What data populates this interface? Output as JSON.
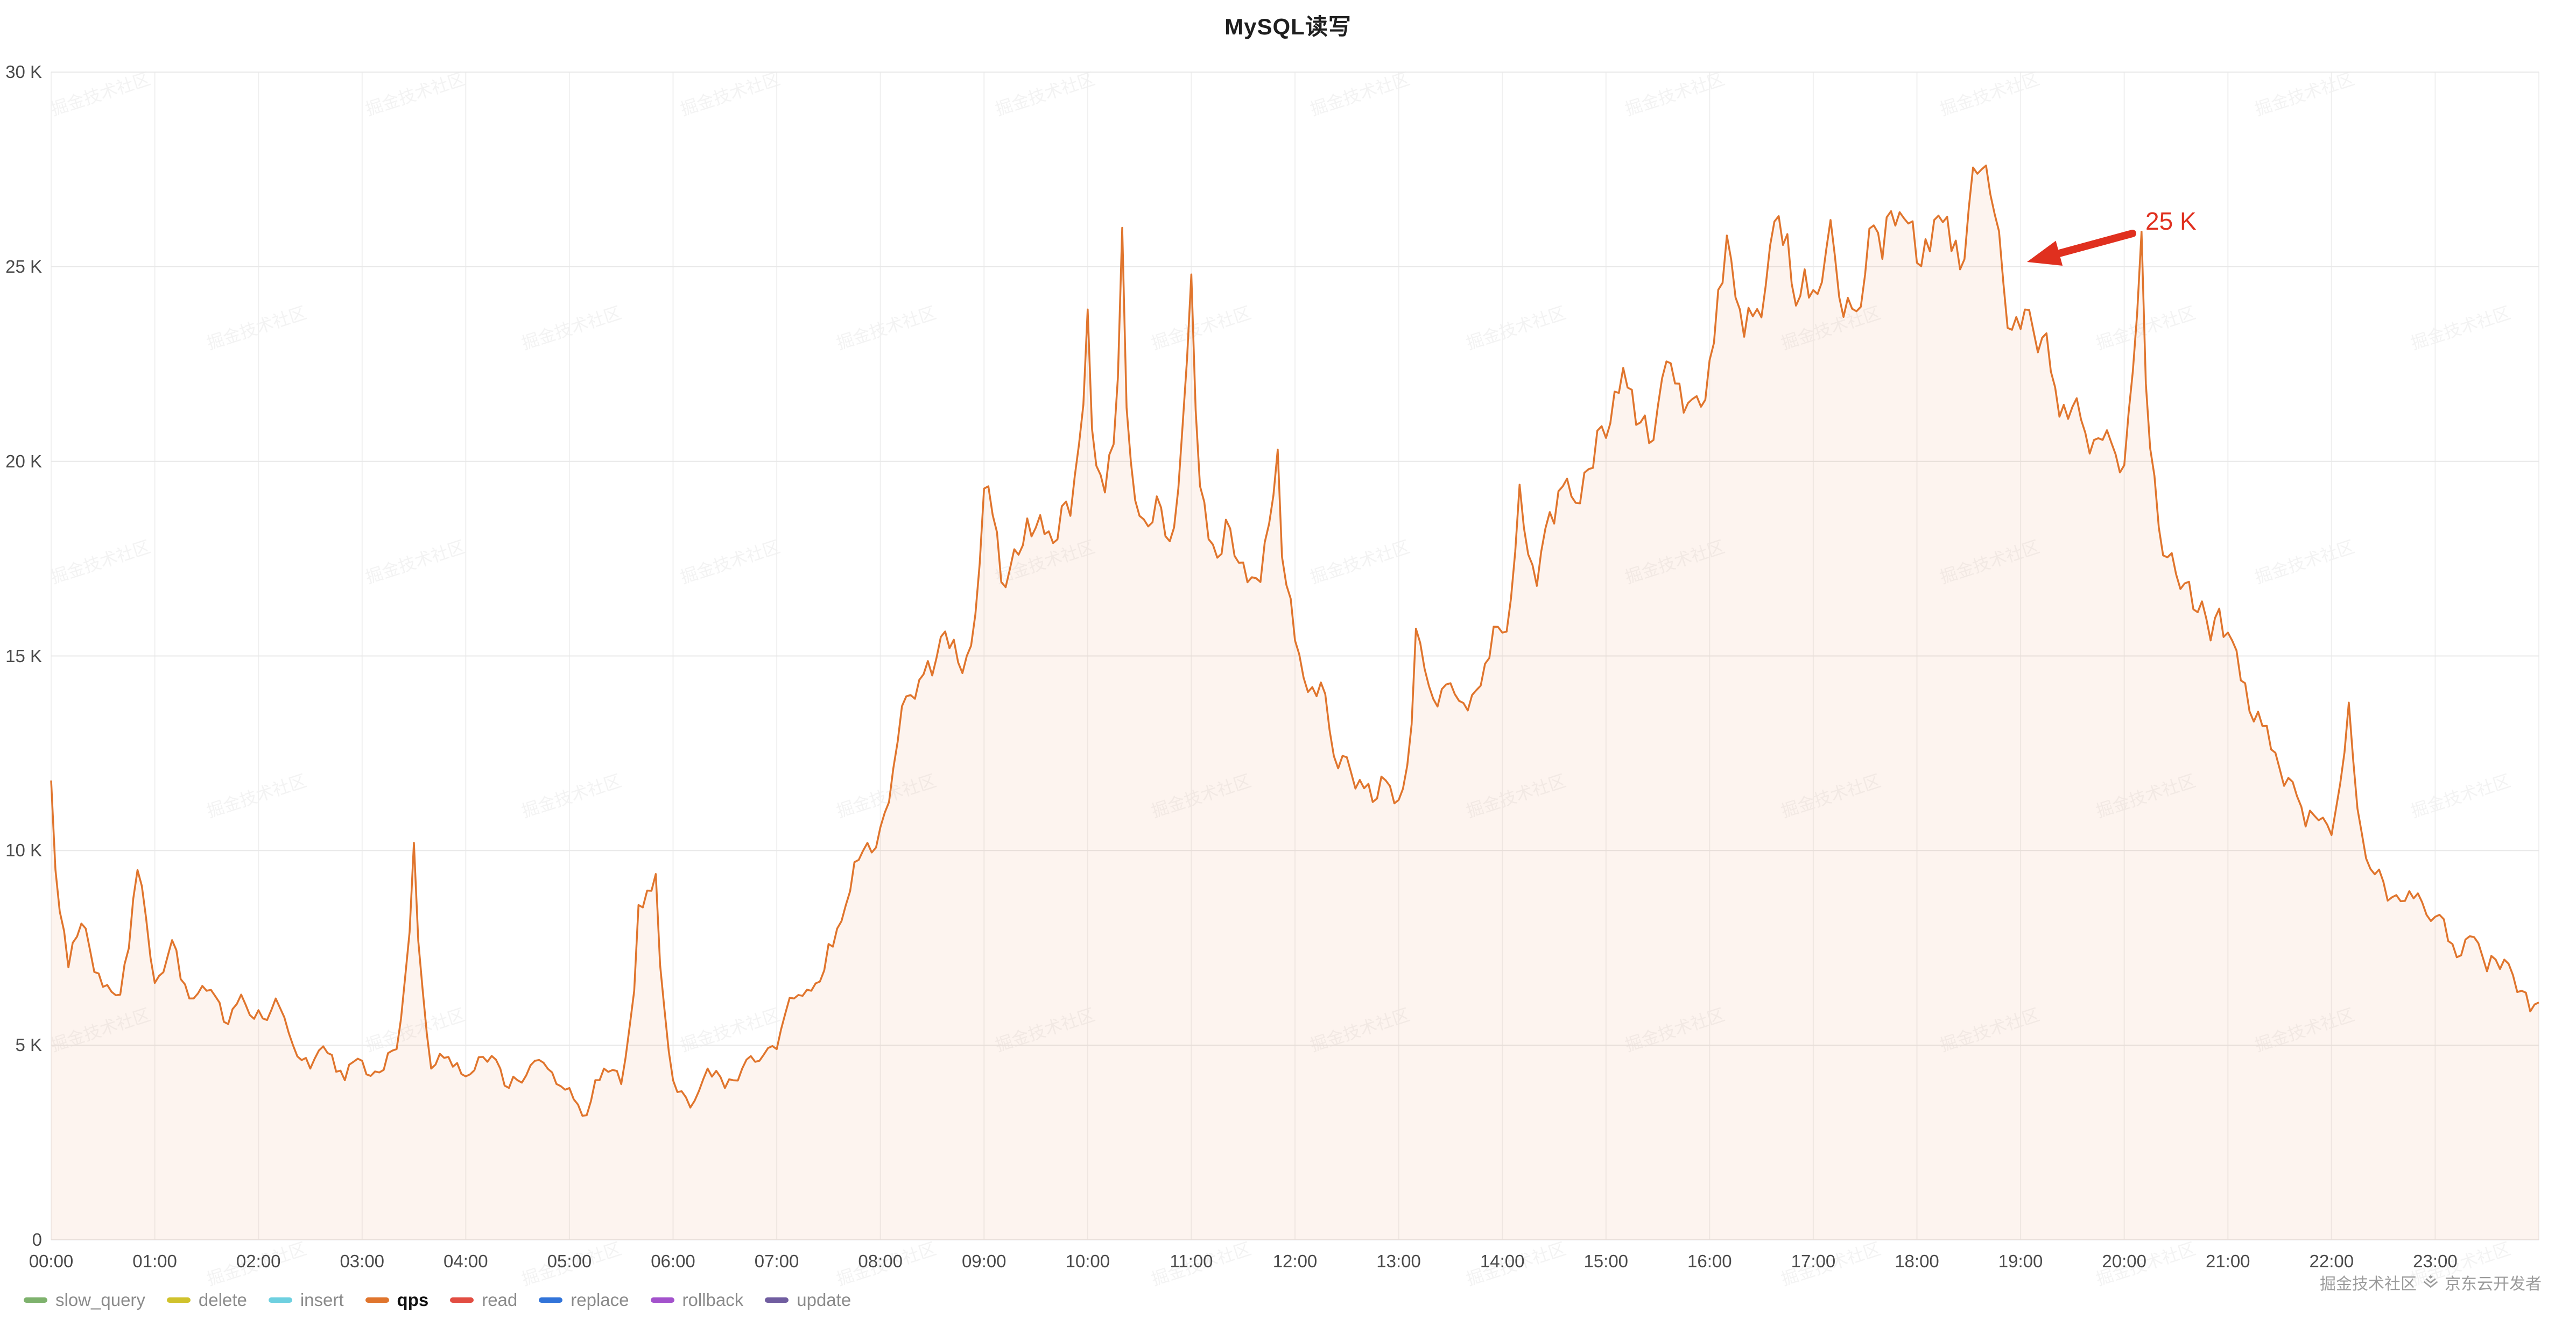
{
  "title": "MySQL读写",
  "chart_data": {
    "type": "line",
    "title": "MySQL读写",
    "xlabel": "",
    "ylabel": "",
    "ylim_k": [
      0,
      30
    ],
    "grid": true,
    "legend_position": "bottom",
    "y_ticks": [
      "0",
      "5 K",
      "10 K",
      "15 K",
      "20 K",
      "25 K",
      "30 K"
    ],
    "x_ticks": [
      "00:00",
      "01:00",
      "02:00",
      "03:00",
      "04:00",
      "05:00",
      "06:00",
      "07:00",
      "08:00",
      "09:00",
      "10:00",
      "11:00",
      "12:00",
      "13:00",
      "14:00",
      "15:00",
      "16:00",
      "17:00",
      "18:00",
      "19:00",
      "20:00",
      "21:00",
      "22:00",
      "23:00"
    ],
    "series": [
      {
        "name": "qps",
        "color": "#e0752d",
        "fill_color": "rgba(224,117,45,0.08)",
        "x_start_minutes": 0,
        "x_step_minutes": 10,
        "values_k": [
          11.8,
          7.0,
          8.0,
          6.5,
          6.3,
          9.5,
          6.6,
          7.7,
          6.2,
          6.4,
          5.6,
          6.3,
          5.9,
          6.2,
          5.0,
          4.4,
          4.8,
          4.1,
          4.6,
          4.3,
          4.9,
          10.2,
          4.4,
          4.7,
          4.2,
          4.7,
          4.4,
          4.1,
          4.6,
          4.3,
          3.9,
          3.2,
          4.4,
          4.0,
          8.6,
          9.4,
          4.1,
          3.4,
          4.4,
          3.9,
          4.4,
          4.6,
          4.9,
          6.2,
          6.4,
          7.6,
          8.6,
          10.0,
          10.6,
          12.8,
          13.9,
          14.5,
          15.2,
          15.0,
          19.3,
          16.9,
          17.6,
          18.3,
          17.9,
          18.6,
          23.9,
          19.2,
          26.0,
          18.6,
          19.1,
          18.3,
          24.8,
          18.0,
          18.5,
          17.4,
          16.9,
          20.3,
          15.4,
          14.2,
          13.1,
          12.4,
          11.6,
          11.9,
          11.3,
          15.7,
          13.9,
          14.3,
          13.6,
          14.8,
          15.6,
          19.4,
          16.8,
          18.4,
          19.1,
          19.8,
          20.6,
          22.4,
          21.0,
          21.4,
          22.0,
          21.6,
          22.6,
          25.8,
          23.2,
          23.7,
          26.3,
          24.0,
          24.4,
          26.2,
          24.2,
          24.8,
          25.2,
          26.4,
          25.1,
          26.2,
          25.4,
          26.5,
          27.6,
          24.6,
          23.4,
          22.8,
          21.9,
          21.4,
          20.2,
          20.8,
          19.9,
          25.9,
          18.3,
          17.1,
          16.2,
          15.4,
          15.6,
          14.3,
          13.2,
          12.1,
          11.4,
          10.9,
          10.4,
          13.8,
          9.8,
          9.2,
          8.7,
          8.9,
          8.3,
          7.6,
          7.8,
          6.9,
          7.2,
          6.4,
          6.1
        ]
      }
    ]
  },
  "annotation": {
    "label": "25 K",
    "color": "#e0301f"
  },
  "legend": {
    "items": [
      {
        "label": "slow_query",
        "color": "#7eb26d",
        "active": false
      },
      {
        "label": "delete",
        "color": "#d0c22c",
        "active": false
      },
      {
        "label": "insert",
        "color": "#6ed0e0",
        "active": false
      },
      {
        "label": "qps",
        "color": "#e0752d",
        "active": true
      },
      {
        "label": "read",
        "color": "#e24d42",
        "active": false
      },
      {
        "label": "replace",
        "color": "#3274d9",
        "active": false
      },
      {
        "label": "rollback",
        "color": "#a352cc",
        "active": false
      },
      {
        "label": "update",
        "color": "#705da0",
        "active": false
      }
    ]
  },
  "watermark": {
    "tile_text": "掘金技术社区"
  },
  "credit": {
    "left": "掘金技术社区",
    "right": "京东云开发者"
  }
}
